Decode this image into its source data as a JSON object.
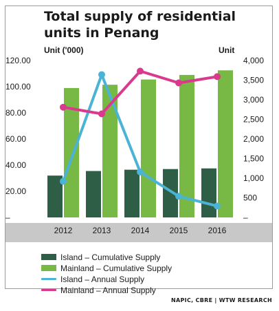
{
  "header": {
    "title_line1": "Total supply of residential",
    "title_line2": "units in Penang"
  },
  "source": "NAPIC, CBRE | WTW RESEARCH",
  "colors": {
    "island_cumulative": "#2e5e46",
    "mainland_cumulative": "#78b844",
    "island_annual": "#4bb3d4",
    "mainland_annual": "#d93a8e",
    "xaxis_band": "#c8c8c8"
  },
  "chart_data": {
    "type": "bar",
    "categories": [
      "2012",
      "2013",
      "2014",
      "2015",
      "2016"
    ],
    "left_axis": {
      "label": "Unit ('000)",
      "range": [
        0,
        120
      ],
      "ticks": [
        0,
        20,
        40,
        60,
        80,
        100,
        120
      ],
      "tick_labels": [
        "–",
        "20.00",
        "40.00",
        "60.00",
        "80.00",
        "100.00",
        "120.00"
      ]
    },
    "right_axis": {
      "label": "Unit",
      "range": [
        0,
        4000
      ],
      "ticks": [
        0,
        500,
        1000,
        1500,
        2000,
        2500,
        3000,
        3500,
        4000
      ],
      "tick_labels": [
        "–",
        "500",
        "1,000",
        "1,500",
        "2,000",
        "2,500",
        "3,000",
        "3,500",
        "4,000"
      ]
    },
    "grid": false,
    "legend_position": "bottom",
    "series": [
      {
        "name": "Island – Cumulative Supply",
        "type": "bar",
        "axis": "left",
        "values": [
          32.0,
          35.5,
          36.5,
          37.0,
          37.5
        ]
      },
      {
        "name": "Mainland – Cumulative Supply",
        "type": "bar",
        "axis": "left",
        "values": [
          99.0,
          101.5,
          105.5,
          109.0,
          112.5
        ]
      },
      {
        "name": "Island – Annual Supply",
        "type": "line",
        "axis": "right",
        "values": [
          920,
          3640,
          1160,
          540,
          290
        ]
      },
      {
        "name": "Mainland – Annual Supply",
        "type": "line",
        "axis": "right",
        "values": [
          2810,
          2640,
          3730,
          3430,
          3590
        ]
      }
    ]
  }
}
